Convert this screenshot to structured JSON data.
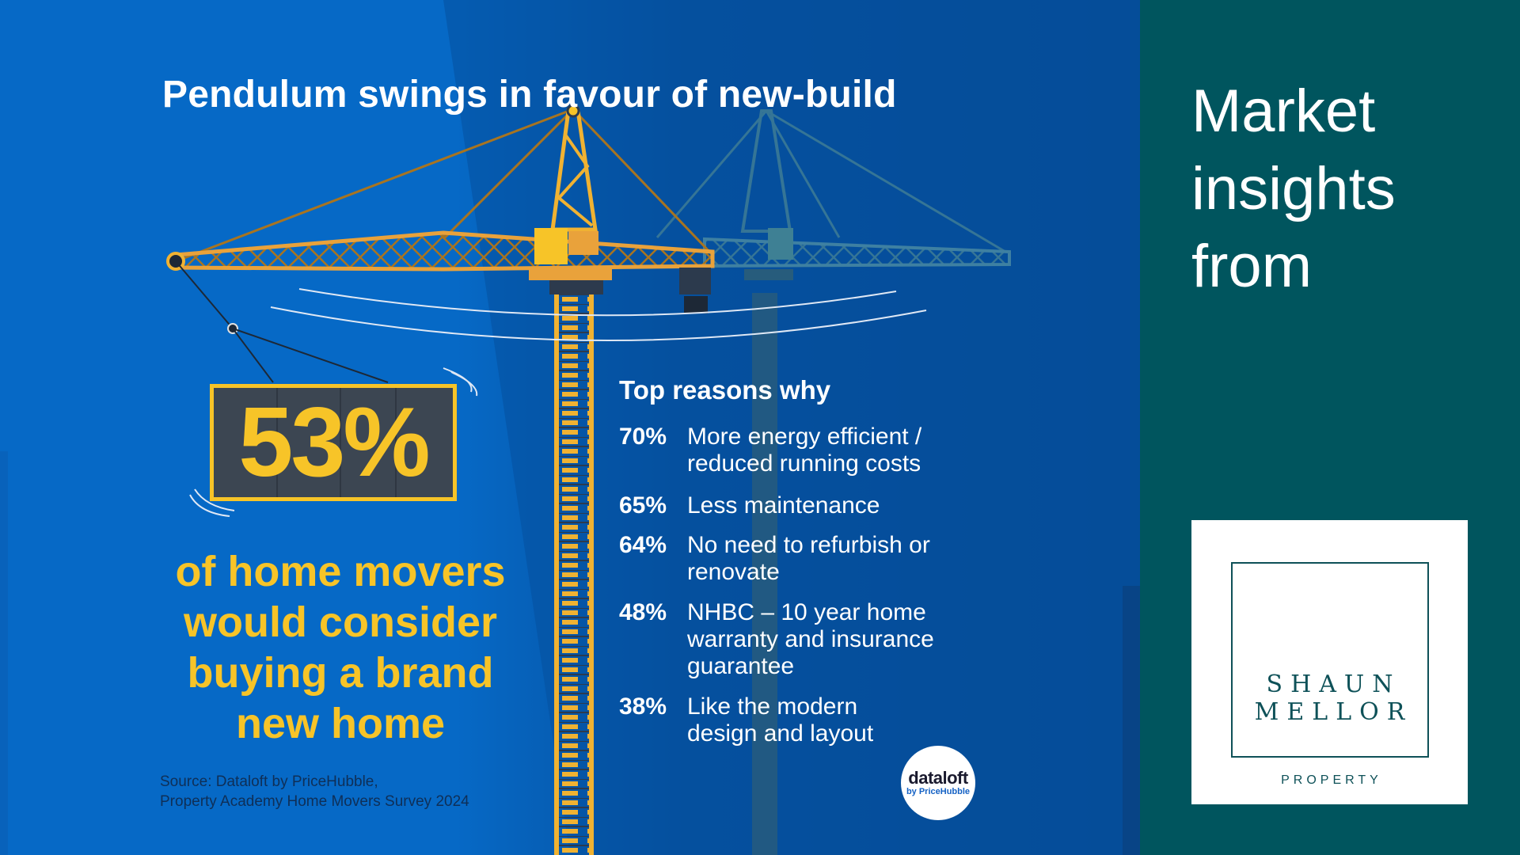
{
  "headline": "Pendulum swings in favour of new-build",
  "stat": {
    "value": "53%",
    "description": "of home movers would consider buying a brand new home"
  },
  "reasons": {
    "title": "Top reasons why",
    "items": [
      {
        "pct": "70%",
        "text": "More energy efficient / reduced running costs"
      },
      {
        "pct": "65%",
        "text": "Less maintenance"
      },
      {
        "pct": "64%",
        "text": "No need to refurbish or renovate"
      },
      {
        "pct": "48%",
        "text": "NHBC – 10 year home warranty and insurance guarantee"
      },
      {
        "pct": "38%",
        "text": "Like the modern design and layout"
      }
    ]
  },
  "source": {
    "line1": "Source: Dataloft by PriceHubble,",
    "line2": "Property Academy Home Movers Survey 2024"
  },
  "dataloft_logo": {
    "line1": "dataloft",
    "line2": "by PriceHubble"
  },
  "sidebar": {
    "title": "Market insights from"
  },
  "brand": {
    "name": "SHAUN MELLOR",
    "sub": "PROPERTY"
  },
  "colors": {
    "blue_light": "#0669c6",
    "blue_dark": "#064a92",
    "yellow": "#f7c428",
    "teal": "#00555e",
    "crane_orange": "#e9a23b"
  }
}
